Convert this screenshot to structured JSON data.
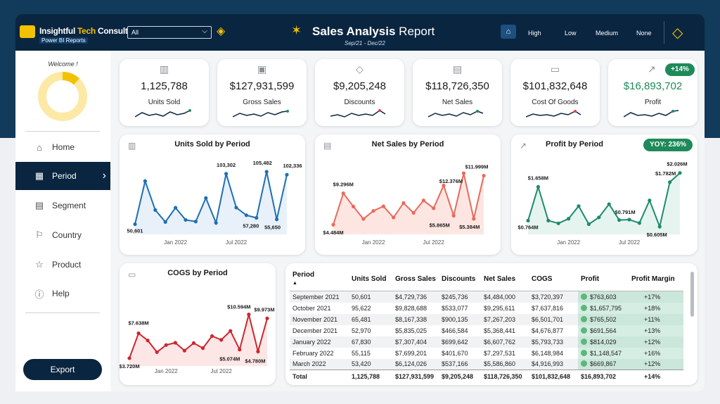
{
  "header": {
    "brand_name": "Insightful Tech Consulting",
    "brand_name_part1": "Insightful ",
    "brand_name_part2": "Tech",
    "brand_name_part3": " Consulting",
    "brand_subtitle": "Power BI Reports",
    "filter_value": "All",
    "title_part1": "Sales Analysis",
    "title_part2": " Report",
    "subtitle": "Sep/21 - Dec/22",
    "levels": [
      "High",
      "Low",
      "Medium",
      "None"
    ]
  },
  "sidebar": {
    "welcome": "Welcome !",
    "donut_value": 0.12,
    "items": [
      {
        "label": "Home",
        "icon": "home-icon"
      },
      {
        "label": "Period",
        "icon": "calendar-icon"
      },
      {
        "label": "Segment",
        "icon": "segment-icon"
      },
      {
        "label": "Country",
        "icon": "flag-icon"
      },
      {
        "label": "Product",
        "icon": "star-icon"
      },
      {
        "label": "Help",
        "icon": "info-icon"
      }
    ],
    "export_label": "Export"
  },
  "kpis": [
    {
      "value": "1,125,788",
      "label": "Units Sold",
      "icon": "barcode-icon"
    },
    {
      "value": "$127,931,599",
      "label": "Gross Sales",
      "icon": "cash-icon"
    },
    {
      "value": "$9,205,248",
      "label": "Discounts",
      "icon": "tag-icon"
    },
    {
      "value": "$118,726,350",
      "label": "Net Sales",
      "icon": "register-icon"
    },
    {
      "value": "$101,832,648",
      "label": "Cost Of Goods",
      "icon": "wallet-icon"
    },
    {
      "value": "$16,893,702",
      "label": "Profit",
      "icon": "growth-icon",
      "badge": "+14%"
    }
  ],
  "colors": {
    "units": "#1f6fb2",
    "net": "#e86a5c",
    "profit": "#1e8a6e",
    "cogs": "#c9282e",
    "accent": "#f2c200",
    "navy": "#0a2540"
  },
  "chart_data": [
    {
      "type": "line",
      "title": "Units Sold by Period",
      "x": [
        "Sep 2021",
        "Oct 2021",
        "Nov 2021",
        "Dec 2021",
        "Jan 2022",
        "Feb 2022",
        "Mar 2022",
        "Apr 2022",
        "May 2022",
        "Jun 2022",
        "Jul 2022",
        "Aug 2022",
        "Sep 2022",
        "Oct 2022",
        "Nov 2022",
        "Dec 2022"
      ],
      "values": [
        50601,
        95622,
        65481,
        52970,
        67830,
        55115,
        53420,
        78000,
        52000,
        103302,
        68000,
        60000,
        57280,
        105482,
        55650,
        102336
      ],
      "xticks": [
        "Jan 2022",
        "Jul 2022"
      ],
      "labels": [
        "50,601",
        "103,302",
        "105,482",
        "102,336",
        "57,280",
        "55,650"
      ],
      "ylim": [
        40000,
        115000
      ]
    },
    {
      "type": "area",
      "title": "Net Sales by Period",
      "x": [
        "Sep 2021",
        "Oct 2021",
        "Nov 2021",
        "Dec 2021",
        "Jan 2022",
        "Feb 2022",
        "Mar 2022",
        "Apr 2022",
        "May 2022",
        "Jun 2022",
        "Jul 2022",
        "Aug 2022",
        "Sep 2022",
        "Oct 2022",
        "Nov 2022",
        "Dec 2022"
      ],
      "values": [
        4.484,
        9.296,
        7.267,
        5.368,
        6.608,
        7.298,
        5.587,
        7.8,
        6.3,
        8.2,
        7.0,
        10.5,
        5.865,
        12.376,
        5.384,
        11.999
      ],
      "xticks": [
        "Jan 2022",
        "Jul 2022"
      ],
      "labels": [
        "$4.484M",
        "$9.296M",
        "$11.999M",
        "$12.376M",
        "$5.865M",
        "$5.384M"
      ],
      "ylim": [
        3,
        14
      ]
    },
    {
      "type": "line",
      "title": "Profit by Period",
      "badge": "YOY: 236%",
      "x": [
        "Sep 2021",
        "Oct 2021",
        "Nov 2021",
        "Dec 2021",
        "Jan 2022",
        "Feb 2022",
        "Mar 2022",
        "Apr 2022",
        "May 2022",
        "Jun 2022",
        "Jul 2022",
        "Aug 2022",
        "Sep 2022",
        "Oct 2022",
        "Nov 2022",
        "Dec 2022"
      ],
      "values": [
        0.764,
        1.658,
        0.766,
        0.692,
        0.814,
        1.149,
        0.67,
        0.85,
        1.2,
        0.78,
        0.791,
        0.7,
        1.3,
        0.605,
        1.782,
        2.026
      ],
      "xticks": [
        "Jan 2022",
        "Jul 2022"
      ],
      "labels": [
        "$0.764M",
        "$1.658M",
        "$0.791M",
        "$0.605M",
        "$1.782M",
        "$2.026M"
      ],
      "ylim": [
        0.4,
        2.3
      ]
    },
    {
      "type": "area",
      "title": "COGS by Period",
      "x": [
        "Sep 2021",
        "Oct 2021",
        "Nov 2021",
        "Dec 2021",
        "Jan 2022",
        "Feb 2022",
        "Mar 2022",
        "Apr 2022",
        "May 2022",
        "Jun 2022",
        "Jul 2022",
        "Aug 2022",
        "Sep 2022",
        "Oct 2022",
        "Nov 2022",
        "Dec 2022"
      ],
      "values": [
        3.72,
        7.638,
        6.502,
        4.677,
        5.794,
        6.148,
        4.917,
        6.1,
        5.3,
        7.2,
        6.6,
        8.0,
        5.074,
        10.594,
        4.78,
        9.973
      ],
      "xticks": [
        "Jan 2022",
        "Jul 2022"
      ],
      "labels": [
        "$3.720M",
        "$7.638M",
        "$9.973M",
        "$10.594M",
        "$5.074M",
        "$4.780M"
      ],
      "ylim": [
        2.5,
        12
      ]
    }
  ],
  "table": {
    "columns": [
      "Period",
      "Units Sold",
      "Gross Sales",
      "Discounts",
      "Net Sales",
      "COGS",
      "Profit",
      "Profit Margin"
    ],
    "rows": [
      [
        "September 2021",
        "50,601",
        "$4,729,736",
        "$245,736",
        "$4,484,000",
        "$3,720,397",
        "$763,603",
        "+17%"
      ],
      [
        "October 2021",
        "95,622",
        "$9,828,688",
        "$533,077",
        "$9,295,611",
        "$7,637,816",
        "$1,657,795",
        "+18%"
      ],
      [
        "November 2021",
        "65,481",
        "$8,167,338",
        "$900,135",
        "$7,267,203",
        "$6,501,701",
        "$765,502",
        "+11%"
      ],
      [
        "December 2021",
        "52,970",
        "$5,835,025",
        "$466,584",
        "$5,368,441",
        "$4,676,877",
        "$691,564",
        "+13%"
      ],
      [
        "January 2022",
        "67,830",
        "$7,307,404",
        "$699,642",
        "$6,607,762",
        "$5,793,733",
        "$814,029",
        "+12%"
      ],
      [
        "February 2022",
        "55,115",
        "$7,699,201",
        "$401,670",
        "$7,297,531",
        "$6,148,984",
        "$1,148,547",
        "+16%"
      ],
      [
        "March 2022",
        "53,420",
        "$6,124,026",
        "$537,166",
        "$5,586,860",
        "$4,916,993",
        "$669,867",
        "+12%"
      ]
    ],
    "total": [
      "Total",
      "1,125,788",
      "$127,931,599",
      "$9,205,248",
      "$118,726,350",
      "$101,832,648",
      "$16,893,702",
      "+14%"
    ]
  }
}
